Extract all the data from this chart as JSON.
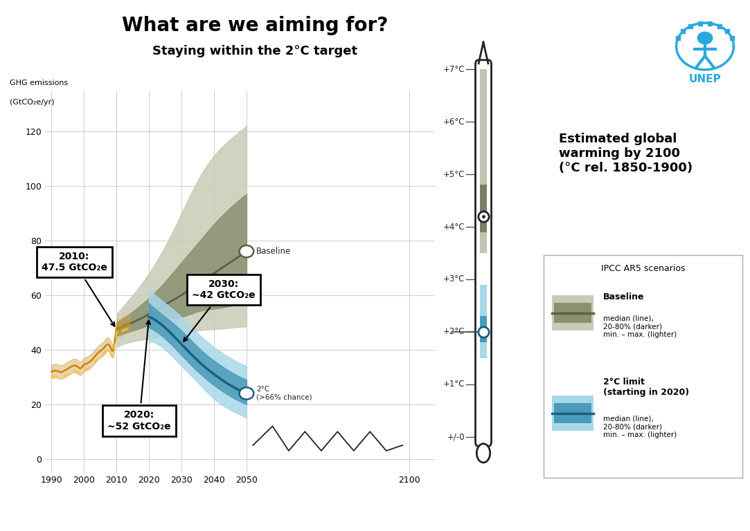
{
  "title": "What are we aiming for?",
  "subtitle": "Staying within the 2°C target",
  "ylabel_line1": "GHG emissions",
  "ylabel_line2": "(GtCO₂e/yr)",
  "xlim": [
    1988,
    2108
  ],
  "ylim": [
    -5,
    135
  ],
  "xticks": [
    1990,
    2000,
    2010,
    2020,
    2030,
    2040,
    2050,
    2100
  ],
  "yticks": [
    0,
    20,
    40,
    60,
    80,
    100,
    120
  ],
  "background_color": "#ffffff",
  "historical_years": [
    1990,
    1991,
    1992,
    1993,
    1994,
    1995,
    1996,
    1997,
    1998,
    1999,
    2000,
    2001,
    2002,
    2003,
    2004,
    2005,
    2006,
    2007,
    2008,
    2009,
    2010,
    2011,
    2012,
    2013,
    2014
  ],
  "historical_median": [
    32,
    32.3,
    32.1,
    31.8,
    32.4,
    33.0,
    33.8,
    34.2,
    33.8,
    33.2,
    34.5,
    35.0,
    35.8,
    37.0,
    38.5,
    39.5,
    40.5,
    41.8,
    41.2,
    40.0,
    47.5,
    48,
    49,
    49.5,
    50
  ],
  "historical_upper": [
    34.5,
    34.8,
    34.6,
    34.3,
    34.9,
    35.5,
    36.3,
    36.7,
    36.3,
    35.7,
    37.0,
    37.5,
    38.3,
    39.5,
    41.0,
    42.0,
    43.0,
    44.3,
    43.7,
    42.5,
    50,
    51,
    52,
    52.5,
    53
  ],
  "historical_lower": [
    29.5,
    29.8,
    29.6,
    29.3,
    29.9,
    30.5,
    31.3,
    31.7,
    31.3,
    30.7,
    32.0,
    32.5,
    33.3,
    34.5,
    36.0,
    37.0,
    38.0,
    39.3,
    38.7,
    37.5,
    45,
    45,
    46,
    46.5,
    47
  ],
  "historical_dashed": [
    30,
    30.3,
    30.1,
    29.8,
    30.4,
    31.0,
    31.8,
    32.2,
    31.8,
    31.2,
    32.5,
    33.0,
    33.8,
    35.0,
    36.5,
    37.5,
    38.5,
    39.8,
    39.2,
    38.0,
    46,
    46.5,
    47,
    47.5,
    48
  ],
  "baseline_years": [
    2010,
    2015,
    2020,
    2025,
    2030,
    2035,
    2040,
    2045,
    2050
  ],
  "baseline_median": [
    47.5,
    50,
    53,
    56.5,
    60,
    64,
    68,
    72,
    76
  ],
  "baseline_80_upper": [
    50,
    54,
    59,
    65,
    72,
    79,
    86,
    92,
    97
  ],
  "baseline_80_lower": [
    45,
    47,
    49,
    51,
    52,
    54,
    55,
    56,
    57
  ],
  "baseline_min_upper": [
    53,
    60,
    68,
    78,
    90,
    102,
    111,
    117,
    122
  ],
  "baseline_min_lower": [
    41,
    43,
    44,
    45,
    46,
    47,
    47.5,
    48,
    48.5
  ],
  "twodeg_years": [
    2020,
    2025,
    2030,
    2035,
    2040,
    2045,
    2050
  ],
  "twodeg_median": [
    52,
    48,
    42,
    36,
    31,
    27,
    24
  ],
  "twodeg_80_upper": [
    57,
    52,
    47,
    41,
    36,
    32,
    29
  ],
  "twodeg_80_lower": [
    48,
    44,
    38,
    32,
    27,
    23,
    20
  ],
  "twodeg_min_upper": [
    62,
    57,
    52,
    46,
    41,
    37,
    34
  ],
  "twodeg_min_lower": [
    43,
    40,
    34,
    28,
    22,
    18,
    15
  ],
  "baseline_color_median": "#5a6145",
  "baseline_color_80": "#8a9070",
  "baseline_color_min": "#c8ccb5",
  "twodeg_color_median": "#1a6080",
  "twodeg_color_80": "#4a9ab8",
  "twodeg_color_min": "#a8d8e8",
  "hist_color_median": "#c8860a",
  "hist_color_band": "#d4a040",
  "hist_dashed_color": "#f0c840",
  "thermometer_temp_labels": [
    "+7°C",
    "+6°C",
    "+5°C",
    "+4°C",
    "+3°C",
    "+2°C",
    "+1°C",
    "+/-0"
  ],
  "thermometer_temp_values": [
    7,
    6,
    5,
    4,
    3,
    2,
    1,
    0
  ],
  "thermo_baseline_min": 3.5,
  "thermo_baseline_max": 7.0,
  "thermo_baseline_80_min": 3.9,
  "thermo_baseline_80_max": 4.8,
  "thermo_baseline_median": 4.2,
  "thermo_2deg_min": 1.5,
  "thermo_2deg_max": 2.9,
  "thermo_2deg_80_min": 1.8,
  "thermo_2deg_80_max": 2.3,
  "thermo_2deg_median": 2.0,
  "legend_title": "IPCC AR5 scenarios",
  "baseline_label_text": "Baseline\nmedian (line),\n20-80% (darker)\nmin. – max. (lighter)",
  "twodeg_label_text": "2°C limit\n(starting in 2020)\nmedian (line),\n20-80% (darker)\nmin. – max. (lighter)",
  "annot_baseline_text": "Baseline",
  "annot_2deg_text": "2°C\n(>66% chance)",
  "estimated_warming_title": "Estimated global\nwarming by 2100\n(°C rel. 1850-1900)",
  "zigzag_x": [
    2052,
    2058,
    2063,
    2068,
    2073,
    2078,
    2083,
    2088,
    2093,
    2098
  ],
  "zigzag_y": [
    5,
    12,
    3,
    10,
    3,
    10,
    3,
    10,
    3,
    5
  ]
}
